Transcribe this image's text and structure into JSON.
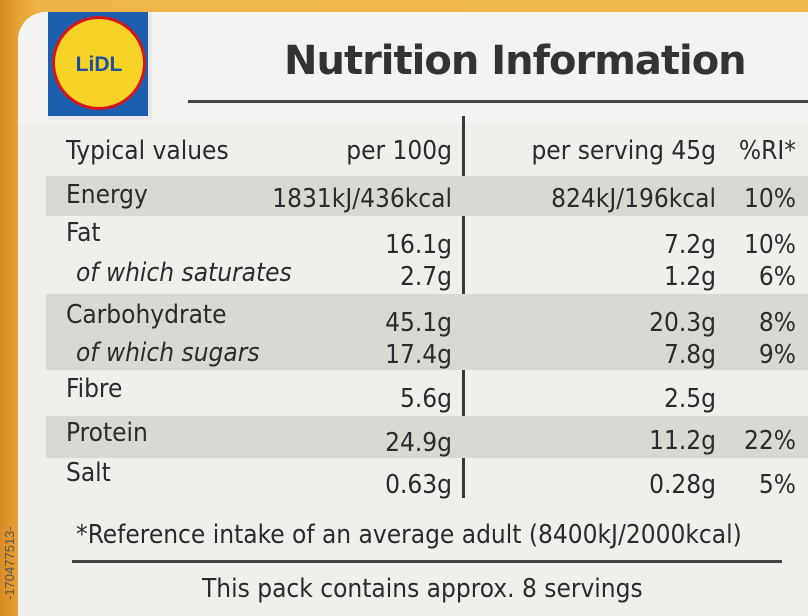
{
  "brand": {
    "logo_text": "LiDL"
  },
  "title": "Nutrition Information",
  "table": {
    "headers": {
      "label": "Typical values",
      "per100": "per 100g",
      "serving": "per serving 45g",
      "ri": "%RI*"
    },
    "rows": [
      {
        "label": "Energy",
        "per100": "1831kJ/436kcal",
        "serving": "824kJ/196kcal",
        "ri": "10%"
      },
      {
        "label": "Fat",
        "per100": "16.1g",
        "serving": "7.2g",
        "ri": "10%"
      },
      {
        "label": "of which saturates",
        "per100": "2.7g",
        "serving": "1.2g",
        "ri": "6%"
      },
      {
        "label": "Carbohydrate",
        "per100": "45.1g",
        "serving": "20.3g",
        "ri": "8%"
      },
      {
        "label": "of which sugars",
        "per100": "17.4g",
        "serving": "7.8g",
        "ri": "9%"
      },
      {
        "label": "Fibre",
        "per100": "5.6g",
        "serving": "2.5g",
        "ri": ""
      },
      {
        "label": "Protein",
        "per100": "24.9g",
        "serving": "11.2g",
        "ri": "22%"
      },
      {
        "label": "Salt",
        "per100": "0.63g",
        "serving": "0.28g",
        "ri": "5%"
      }
    ]
  },
  "footnote": "*Reference intake of an average adult (8400kJ/2000kcal)",
  "servings_note": "This pack contains approx. 8 servings",
  "side_code": "-170477513-",
  "colors": {
    "background": "#e9a22e",
    "panel": "#efefec",
    "shade": "#d9d8d3",
    "logo_blue": "#1b5fae",
    "logo_yellow": "#f6d326",
    "logo_red": "#d5161c"
  }
}
